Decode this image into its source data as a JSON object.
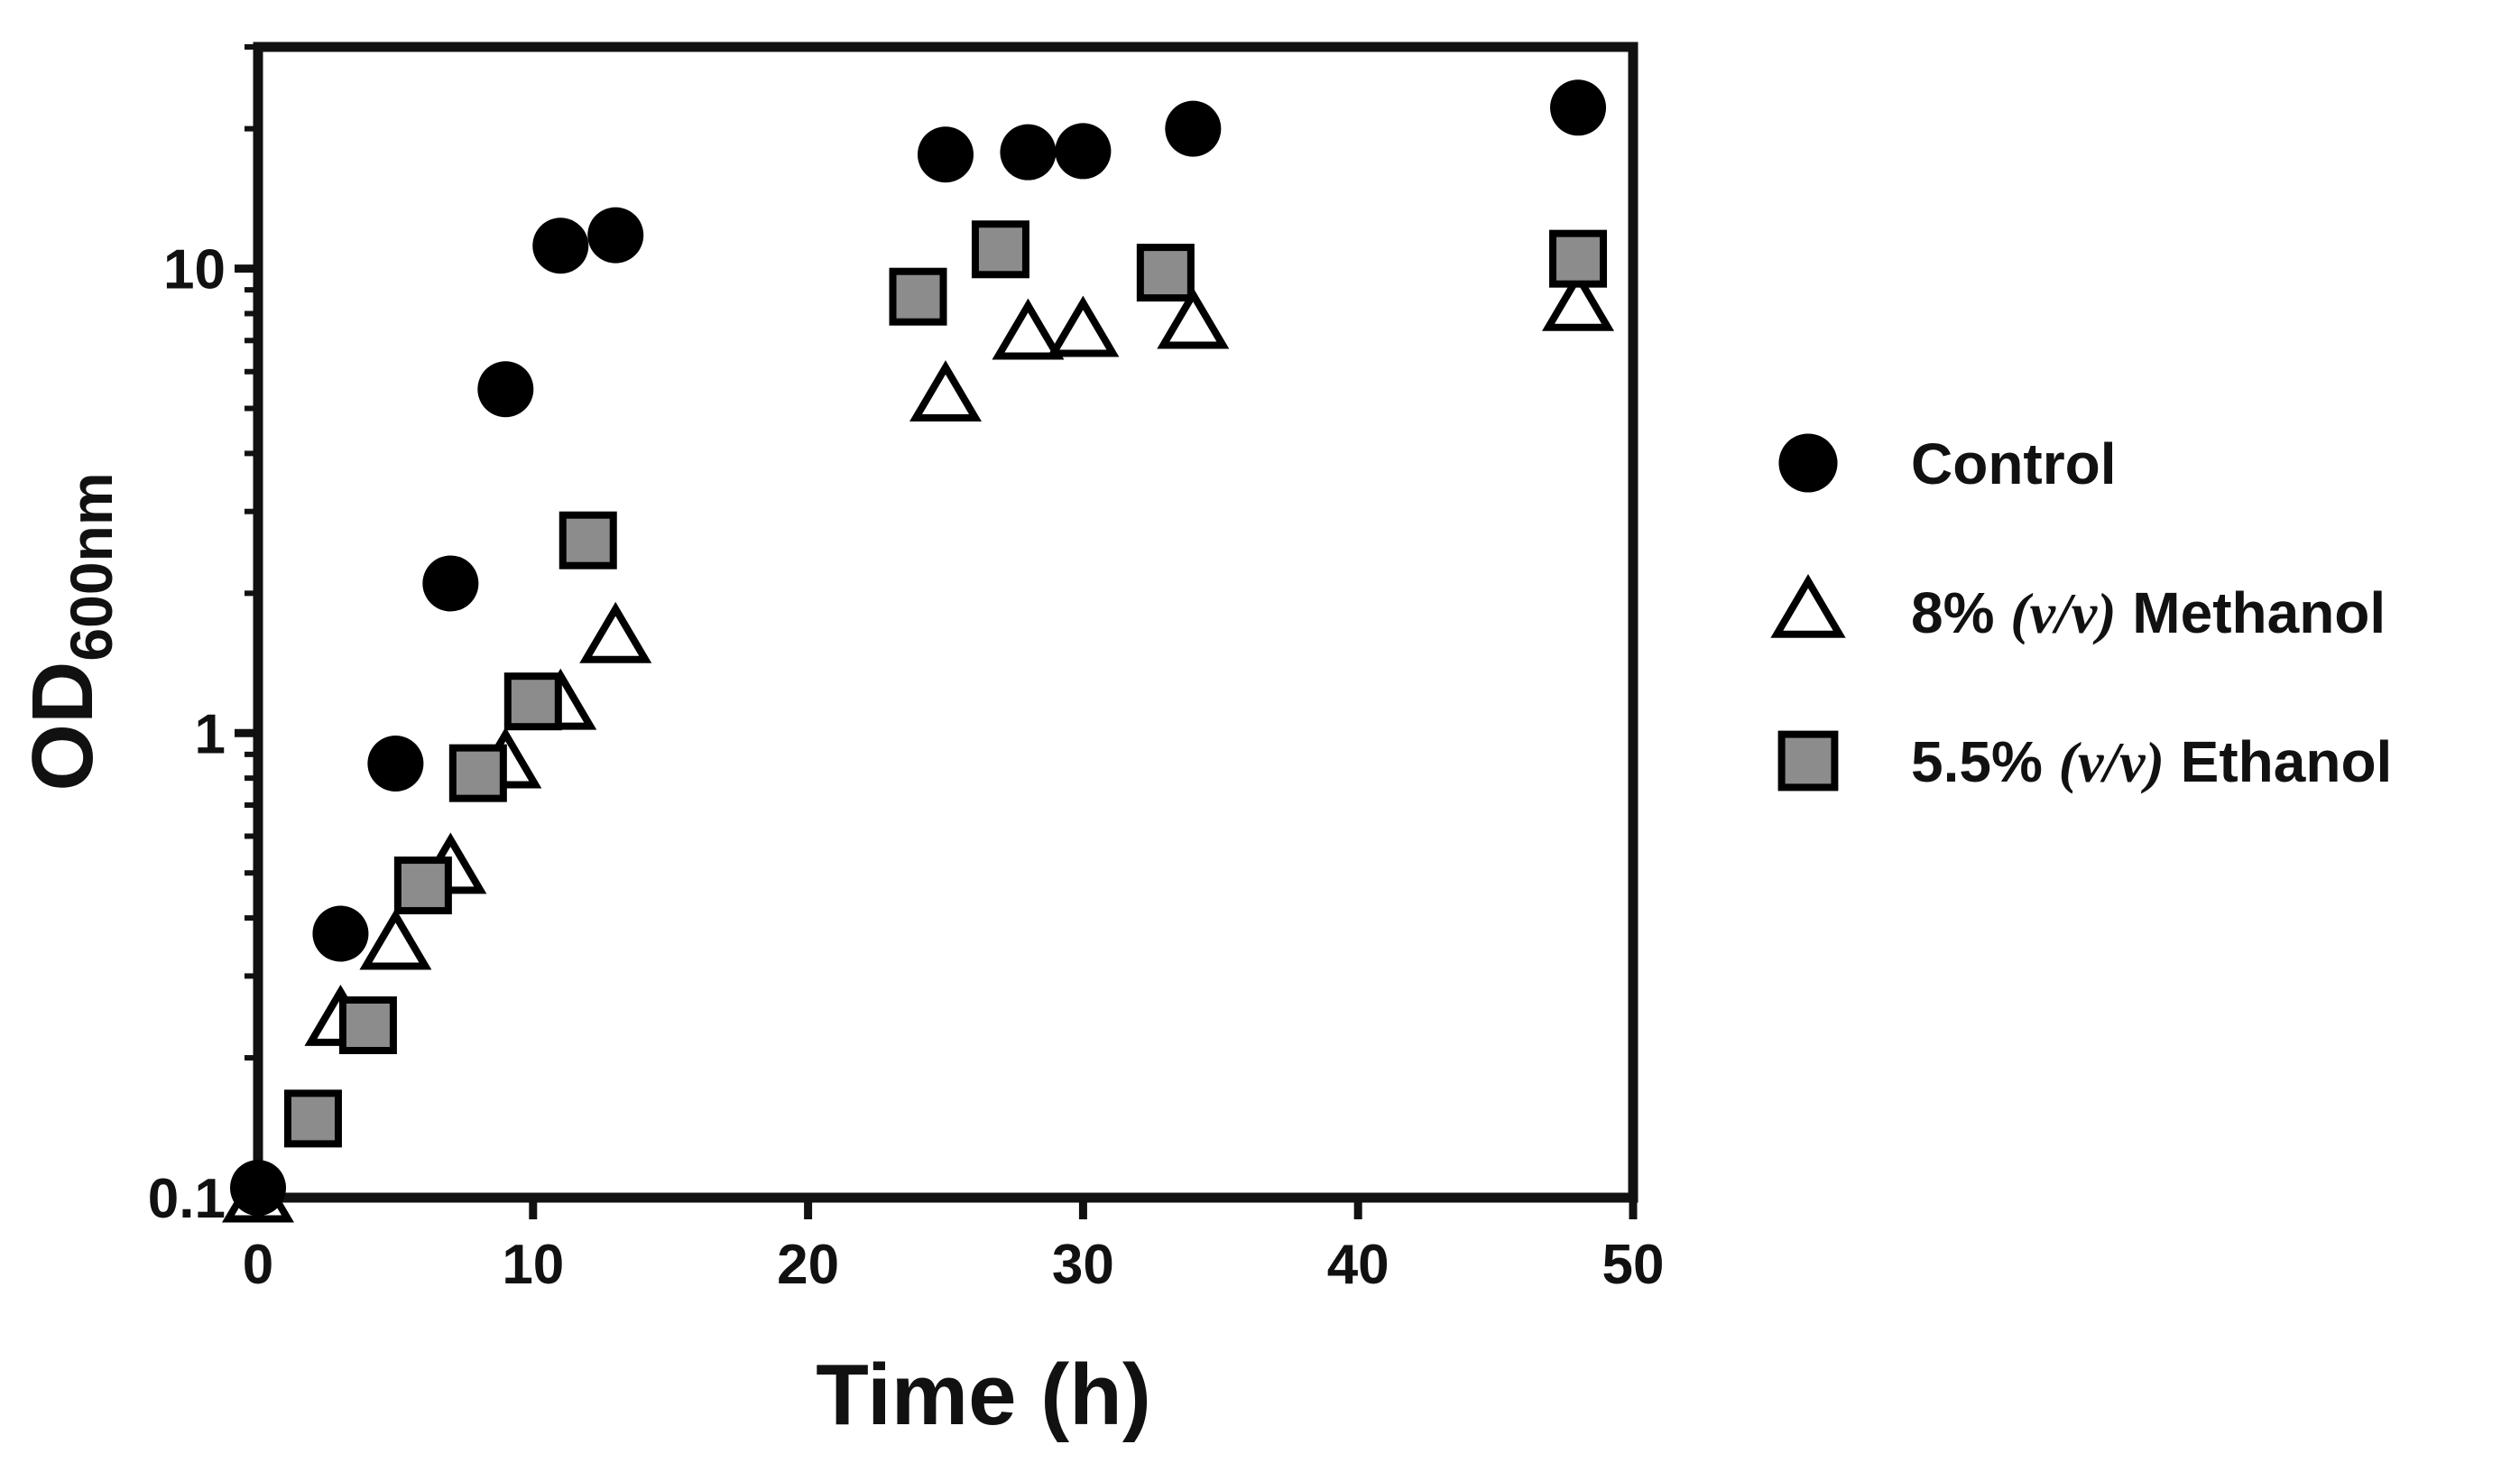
{
  "chart_data": {
    "type": "scatter",
    "title": "",
    "xlabel": "Time (h)",
    "ylabel_main": "OD",
    "ylabel_sub": "600nm",
    "xscale": "linear",
    "yscale": "log",
    "xlim": [
      0,
      50
    ],
    "ylim": [
      0.1,
      30
    ],
    "x_ticks": [
      {
        "value": 0,
        "label": "0"
      },
      {
        "value": 10,
        "label": "10"
      },
      {
        "value": 20,
        "label": "20"
      },
      {
        "value": 30,
        "label": "30"
      },
      {
        "value": 40,
        "label": "40"
      },
      {
        "value": 50,
        "label": "50"
      }
    ],
    "y_ticks": [
      {
        "value": 0.1,
        "label": "0.1"
      },
      {
        "value": 1,
        "label": "1"
      },
      {
        "value": 10,
        "label": "10"
      }
    ],
    "grid": false,
    "legend_position": "right",
    "series": [
      {
        "name": "Control",
        "marker": "circle",
        "label_parts": [
          {
            "text": "Control",
            "italic": false
          }
        ],
        "x": [
          0,
          3,
          5,
          7,
          9,
          11,
          13,
          25,
          28,
          30,
          34,
          48
        ],
        "y": [
          0.105,
          0.37,
          0.86,
          2.1,
          5.5,
          11.2,
          11.8,
          17.6,
          17.8,
          17.9,
          20.0,
          22.2
        ]
      },
      {
        "name": "8% (v/v) Methanol",
        "marker": "triangle",
        "label_parts": [
          {
            "text": "8% ",
            "italic": false
          },
          {
            "text": "(v/v)",
            "italic": true
          },
          {
            "text": " Methanol",
            "italic": false
          }
        ],
        "x": [
          0,
          3,
          5,
          7,
          9,
          11,
          13,
          25,
          28,
          30,
          34,
          48
        ],
        "y": [
          0.1,
          0.24,
          0.35,
          0.51,
          0.86,
          1.15,
          1.6,
          5.3,
          7.2,
          7.3,
          7.6,
          8.3
        ]
      },
      {
        "name": "5.5% (v/v) Ethanol",
        "marker": "square",
        "label_parts": [
          {
            "text": "5.5% ",
            "italic": false
          },
          {
            "text": "(v/v)",
            "italic": true
          },
          {
            "text": " Ethanol",
            "italic": false
          }
        ],
        "x": [
          2,
          4,
          6,
          8,
          10,
          12,
          24,
          27,
          33,
          48
        ],
        "y": [
          0.148,
          0.235,
          0.47,
          0.82,
          1.17,
          2.6,
          8.7,
          11.0,
          9.8,
          10.5
        ]
      }
    ]
  },
  "colors": {
    "axis": "#111111",
    "control_fill": "#000000",
    "methanol_fill": "#ffffff",
    "ethanol_fill": "#8c8c8c",
    "marker_stroke": "#000000"
  }
}
